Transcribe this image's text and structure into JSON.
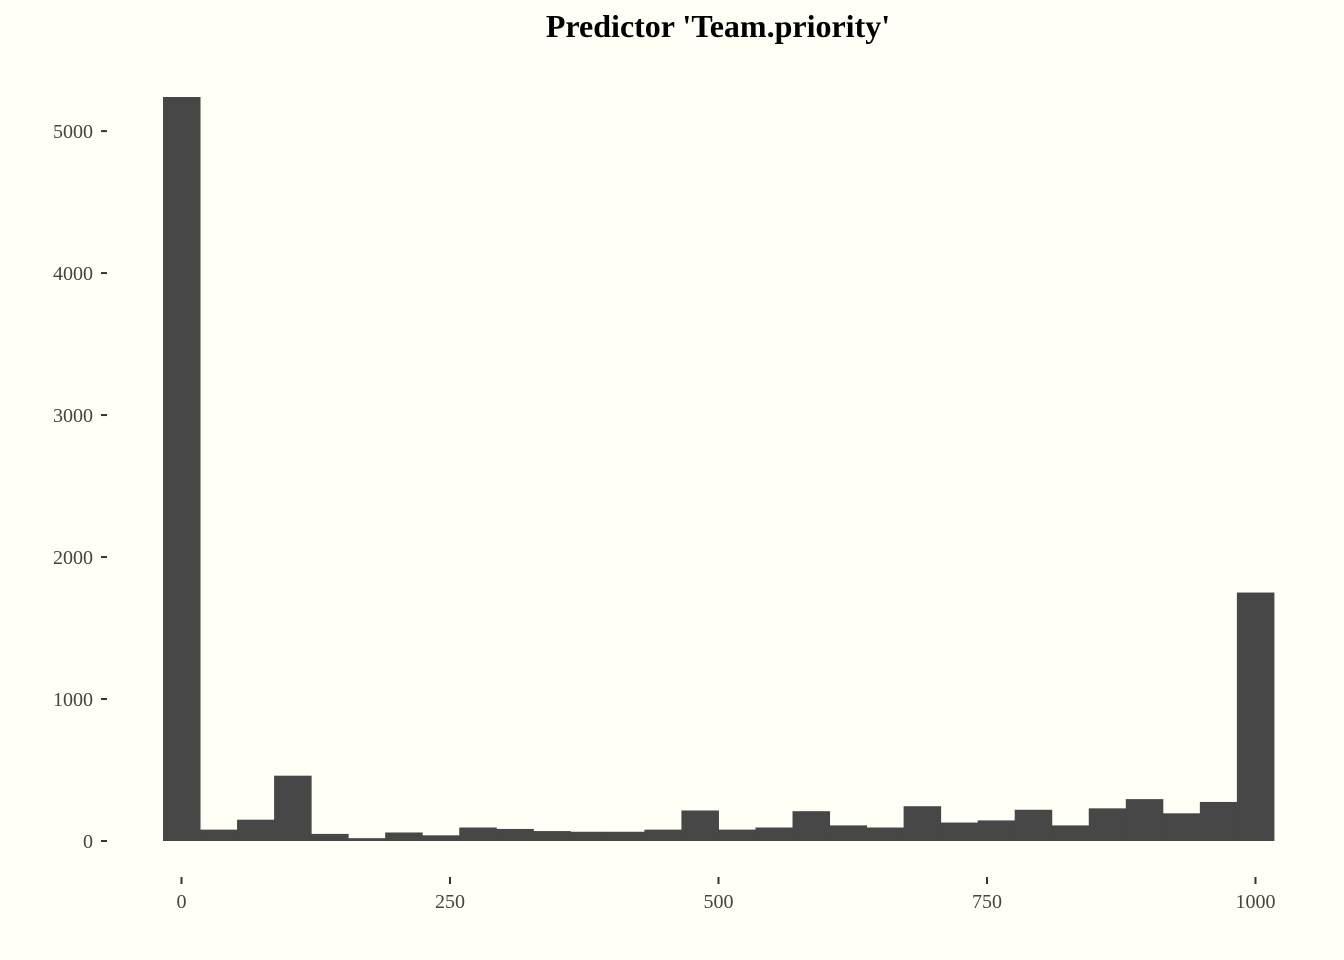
{
  "chart_data": {
    "type": "bar",
    "title": "Predictor 'Team.priority'",
    "xlabel": "",
    "ylabel": "",
    "bin_width": 34.48,
    "bin_start": -17.24,
    "values": [
      5240,
      80,
      150,
      460,
      50,
      20,
      60,
      40,
      95,
      85,
      70,
      65,
      65,
      80,
      215,
      80,
      95,
      210,
      110,
      95,
      245,
      130,
      145,
      220,
      110,
      230,
      295,
      195,
      275,
      1750
    ],
    "xlim": [
      -17.24,
      1017.24
    ],
    "ylim": [
      0,
      5240
    ],
    "x_ticks": [
      0,
      250,
      500,
      750,
      1000
    ],
    "y_ticks": [
      0,
      1000,
      2000,
      3000,
      4000,
      5000
    ],
    "bar_color": "#474747",
    "background": "#fffff5",
    "grid": false
  }
}
